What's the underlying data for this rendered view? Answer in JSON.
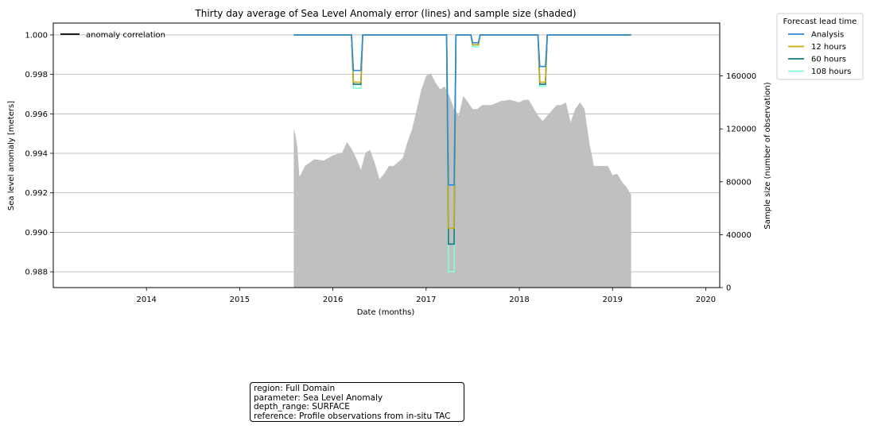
{
  "chart_data": {
    "type": "line",
    "title": "Thirty day average of Sea Level Anomaly error (lines) and sample size (shaded)",
    "xlabel": "Date (months)",
    "ylabel": "Sea level anomaly [meters]",
    "ylabel_right": "Sample size (number of observation)",
    "xlim": [
      2013.0,
      2020.15
    ],
    "ylim": [
      0.9872,
      1.0006
    ],
    "ylim_right": [
      0,
      200000
    ],
    "x_ticks": [
      2014,
      2015,
      2016,
      2017,
      2018,
      2019,
      2020
    ],
    "x_tick_labels": [
      "2014",
      "2015",
      "2016",
      "2017",
      "2018",
      "2019",
      "2020"
    ],
    "y_ticks": [
      0.988,
      0.99,
      0.992,
      0.994,
      0.996,
      0.998,
      1.0
    ],
    "y_tick_labels": [
      "0.988",
      "0.990",
      "0.992",
      "0.994",
      "0.996",
      "0.998",
      "1.000"
    ],
    "y_right_ticks": [
      0,
      40000,
      80000,
      120000,
      160000
    ],
    "y_right_tick_labels": [
      "0",
      "40000",
      "80000",
      "120000",
      "160000"
    ],
    "grid": "horizontal",
    "inner_legend": {
      "placement": "upper-left",
      "label": "anomaly correlation",
      "color": "#000000"
    },
    "legend": {
      "title": "Forecast lead time",
      "placement": "outside-right"
    },
    "sample_size": {
      "color": "#c0c0c0",
      "x": [
        2015.58,
        2015.6,
        2015.62,
        2015.64,
        2015.66,
        2015.7,
        2015.8,
        2015.9,
        2016.0,
        2016.1,
        2016.15,
        2016.2,
        2016.25,
        2016.3,
        2016.35,
        2016.4,
        2016.45,
        2016.5,
        2016.55,
        2016.6,
        2016.65,
        2016.7,
        2016.75,
        2016.8,
        2016.85,
        2016.9,
        2016.95,
        2017.0,
        2017.05,
        2017.1,
        2017.15,
        2017.2,
        2017.25,
        2017.3,
        2017.35,
        2017.4,
        2017.45,
        2017.5,
        2017.55,
        2017.6,
        2017.7,
        2017.8,
        2017.9,
        2018.0,
        2018.05,
        2018.1,
        2018.15,
        2018.2,
        2018.25,
        2018.3,
        2018.35,
        2018.4,
        2018.45,
        2018.5,
        2018.55,
        2018.6,
        2018.65,
        2018.7,
        2018.75,
        2018.8,
        2018.85,
        2018.9,
        2018.95,
        2019.0,
        2019.05,
        2019.1,
        2019.15,
        2019.2
      ],
      "values": [
        120000,
        115000,
        105000,
        84000,
        86000,
        92000,
        97000,
        96000,
        100000,
        102000,
        110000,
        105000,
        98000,
        89000,
        102000,
        104000,
        94000,
        82000,
        86000,
        92000,
        92000,
        95000,
        98000,
        110000,
        120000,
        135000,
        150000,
        160000,
        162000,
        155000,
        150000,
        152000,
        145000,
        135000,
        130000,
        145000,
        140000,
        135000,
        135000,
        138000,
        138000,
        141000,
        142000,
        140000,
        142000,
        142000,
        136000,
        130000,
        126000,
        130000,
        134000,
        138000,
        138000,
        140000,
        125000,
        135000,
        140000,
        135000,
        110000,
        92000,
        92000,
        92000,
        92000,
        85000,
        86000,
        80000,
        76000,
        70000
      ]
    },
    "x": [
      2015.58,
      2016.2,
      2016.22,
      2016.3,
      2016.32,
      2017.22,
      2017.24,
      2017.3,
      2017.32,
      2017.48,
      2017.5,
      2017.56,
      2017.58,
      2018.2,
      2018.22,
      2018.28,
      2018.3,
      2019.2
    ],
    "series": [
      {
        "name": "Analysis",
        "color": "#2b8ad8",
        "values": [
          1.0,
          1.0,
          0.9982,
          0.9982,
          1.0,
          1.0,
          0.9924,
          0.9924,
          1.0,
          1.0,
          0.9996,
          0.9996,
          1.0,
          1.0,
          0.9984,
          0.9984,
          1.0,
          1.0
        ]
      },
      {
        "name": "12 hours",
        "color": "#c8a80c",
        "values": [
          1.0,
          1.0,
          0.9976,
          0.9976,
          1.0,
          1.0,
          0.9902,
          0.9902,
          1.0,
          1.0,
          0.9995,
          0.9995,
          1.0,
          1.0,
          0.9976,
          0.9976,
          1.0,
          1.0
        ]
      },
      {
        "name": "60 hours",
        "color": "#0d7a86",
        "values": [
          1.0,
          1.0,
          0.9975,
          0.9975,
          1.0,
          1.0,
          0.9894,
          0.9894,
          1.0,
          1.0,
          0.9995,
          0.9995,
          1.0,
          1.0,
          0.9975,
          0.9975,
          1.0,
          1.0
        ]
      },
      {
        "name": "108 hours",
        "color": "#7fffd4",
        "values": [
          1.0,
          1.0,
          0.9973,
          0.9973,
          1.0,
          1.0,
          0.988,
          0.988,
          1.0,
          1.0,
          0.9994,
          0.9994,
          1.0,
          1.0,
          0.9974,
          0.9974,
          1.0,
          1.0
        ]
      }
    ]
  },
  "info_box": {
    "region": "region: Full Domain",
    "parameter": "parameter: Sea Level Anomaly",
    "depth_range": "depth_range: SURFACE",
    "reference": "reference: Profile observations from in-situ TAC"
  }
}
